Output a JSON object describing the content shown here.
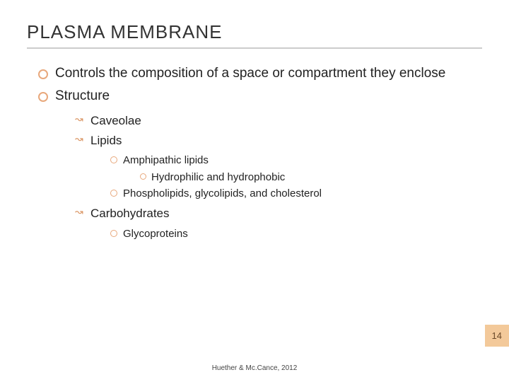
{
  "colors": {
    "background": "#ffffff",
    "title_text": "#333333",
    "title_underline": "#cccccc",
    "bullet_ring": "#e8a87c",
    "body_text": "#222222",
    "pagenum_bg": "#f3c99a",
    "pagenum_text": "#6b4a2a",
    "citation_text": "#444444"
  },
  "typography": {
    "title_fontsize_pt": 20,
    "level1_fontsize_pt": 14,
    "level2_fontsize_pt": 13,
    "level3_fontsize_pt": 11,
    "citation_fontsize_pt": 7
  },
  "title": "PLASMA MEMBRANE",
  "bullets": {
    "level1": [
      "Controls the composition of a space or compartment they enclose",
      "Structure"
    ],
    "level2": [
      "Caveolae",
      "Lipids",
      "Carbohydrates"
    ],
    "lipids_children": [
      "Amphipathic lipids",
      "Phospholipids, glycolipids, and cholesterol"
    ],
    "amphipathic_child": "Hydrophilic and hydrophobic",
    "carbs_children": [
      "Glycoproteins"
    ]
  },
  "page_number": "14",
  "citation": "Huether & Mc.Cance, 2012"
}
